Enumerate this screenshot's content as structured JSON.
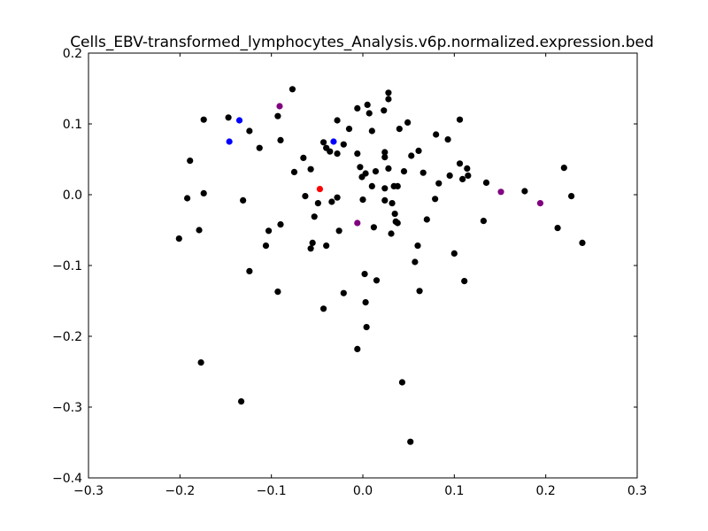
{
  "chart_data": {
    "type": "scatter",
    "title": "Cells_EBV-transformed_lymphocytes_Analysis.v6p.normalized.expression.bed",
    "xlabel": "",
    "ylabel": "",
    "xlim": [
      -0.3,
      0.3
    ],
    "ylim": [
      -0.4,
      0.2
    ],
    "grid": false,
    "xticks": [
      -0.3,
      -0.2,
      -0.1,
      0.0,
      0.1,
      0.2,
      0.3
    ],
    "xtick_labels": [
      "−0.3",
      "−0.2",
      "−0.1",
      "0.0",
      "0.1",
      "0.2",
      "0.3"
    ],
    "yticks": [
      0.2,
      0.1,
      0.0,
      -0.1,
      -0.2,
      -0.3,
      -0.4
    ],
    "ytick_labels": [
      "0.2",
      "0.1",
      "0.0",
      "−0.1",
      "−0.2",
      "−0.3",
      "−0.4"
    ],
    "series": [
      {
        "color": "#000000",
        "points": [
          [
            -0.201,
            -0.062
          ],
          [
            -0.192,
            -0.005
          ],
          [
            -0.189,
            0.048
          ],
          [
            -0.179,
            -0.05
          ],
          [
            -0.177,
            -0.237
          ],
          [
            -0.174,
            0.106
          ],
          [
            -0.174,
            0.002
          ],
          [
            -0.147,
            0.109
          ],
          [
            -0.133,
            -0.292
          ],
          [
            -0.131,
            -0.008
          ],
          [
            -0.124,
            0.09
          ],
          [
            -0.124,
            -0.108
          ],
          [
            -0.113,
            0.066
          ],
          [
            -0.106,
            -0.072
          ],
          [
            -0.103,
            -0.051
          ],
          [
            -0.093,
            0.111
          ],
          [
            -0.093,
            -0.137
          ],
          [
            -0.09,
            0.077
          ],
          [
            -0.09,
            -0.042
          ],
          [
            -0.077,
            0.149
          ],
          [
            -0.075,
            0.032
          ],
          [
            -0.065,
            0.052
          ],
          [
            -0.063,
            -0.002
          ],
          [
            -0.057,
            0.036
          ],
          [
            -0.057,
            -0.076
          ],
          [
            -0.055,
            -0.068
          ],
          [
            -0.053,
            -0.031
          ],
          [
            -0.049,
            -0.012
          ],
          [
            -0.043,
            0.074
          ],
          [
            -0.043,
            -0.161
          ],
          [
            -0.04,
            0.066
          ],
          [
            -0.04,
            -0.072
          ],
          [
            -0.036,
            0.061
          ],
          [
            -0.034,
            -0.01
          ],
          [
            -0.028,
            0.105
          ],
          [
            -0.028,
            0.058
          ],
          [
            -0.028,
            -0.004
          ],
          [
            -0.026,
            -0.051
          ],
          [
            -0.021,
            0.071
          ],
          [
            -0.021,
            -0.139
          ],
          [
            -0.015,
            0.093
          ],
          [
            -0.006,
            0.122
          ],
          [
            -0.006,
            0.058
          ],
          [
            -0.006,
            -0.218
          ],
          [
            -0.003,
            0.039
          ],
          [
            -0.001,
            0.025
          ],
          [
            0.0,
            -0.007
          ],
          [
            0.002,
            -0.112
          ],
          [
            0.003,
            -0.152
          ],
          [
            0.003,
            0.03
          ],
          [
            0.004,
            -0.187
          ],
          [
            0.005,
            0.127
          ],
          [
            0.007,
            0.115
          ],
          [
            0.01,
            0.09
          ],
          [
            0.01,
            0.012
          ],
          [
            0.012,
            -0.046
          ],
          [
            0.014,
            0.033
          ],
          [
            0.015,
            -0.121
          ],
          [
            0.023,
            0.119
          ],
          [
            0.024,
            0.06
          ],
          [
            0.024,
            0.053
          ],
          [
            0.024,
            0.009
          ],
          [
            0.024,
            -0.008
          ],
          [
            0.028,
            0.144
          ],
          [
            0.028,
            0.135
          ],
          [
            0.028,
            0.037
          ],
          [
            0.031,
            -0.055
          ],
          [
            0.032,
            -0.012
          ],
          [
            0.034,
            0.012
          ],
          [
            0.035,
            -0.027
          ],
          [
            0.036,
            -0.038
          ],
          [
            0.038,
            0.012
          ],
          [
            0.038,
            -0.04
          ],
          [
            0.04,
            0.093
          ],
          [
            0.043,
            -0.265
          ],
          [
            0.045,
            0.033
          ],
          [
            0.049,
            0.102
          ],
          [
            0.052,
            -0.349
          ],
          [
            0.053,
            0.055
          ],
          [
            0.057,
            -0.095
          ],
          [
            0.06,
            -0.072
          ],
          [
            0.061,
            0.062
          ],
          [
            0.062,
            -0.136
          ],
          [
            0.066,
            0.031
          ],
          [
            0.07,
            -0.035
          ],
          [
            0.079,
            -0.006
          ],
          [
            0.08,
            0.085
          ],
          [
            0.083,
            0.016
          ],
          [
            0.093,
            0.078
          ],
          [
            0.095,
            0.027
          ],
          [
            0.1,
            -0.083
          ],
          [
            0.106,
            0.106
          ],
          [
            0.106,
            0.044
          ],
          [
            0.109,
            0.022
          ],
          [
            0.111,
            -0.122
          ],
          [
            0.114,
            0.037
          ],
          [
            0.115,
            0.027
          ],
          [
            0.132,
            -0.037
          ],
          [
            0.135,
            0.017
          ],
          [
            0.177,
            0.005
          ],
          [
            0.213,
            -0.047
          ],
          [
            0.22,
            0.038
          ],
          [
            0.228,
            -0.002
          ],
          [
            0.24,
            -0.068
          ]
        ]
      },
      {
        "color": "#0000ff",
        "points": [
          [
            -0.146,
            0.075
          ],
          [
            -0.135,
            0.105
          ],
          [
            -0.032,
            0.075
          ]
        ]
      },
      {
        "color": "#800080",
        "points": [
          [
            -0.091,
            0.125
          ],
          [
            -0.006,
            -0.04
          ],
          [
            0.151,
            0.004
          ],
          [
            0.194,
            -0.012
          ]
        ]
      },
      {
        "color": "#ff0000",
        "points": [
          [
            -0.047,
            0.008
          ]
        ]
      }
    ]
  }
}
